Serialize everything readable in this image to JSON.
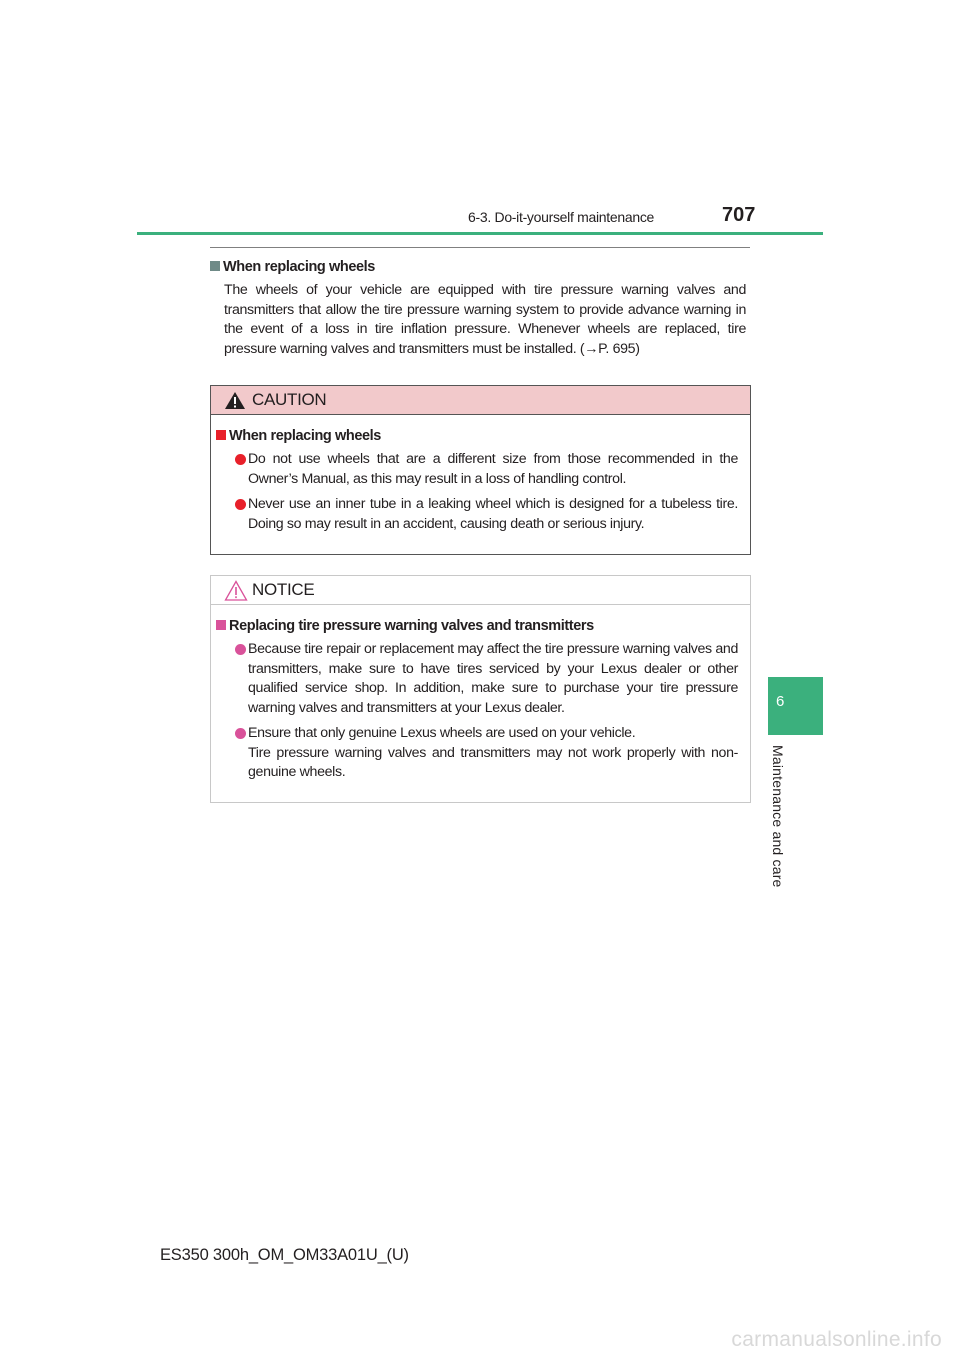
{
  "header": {
    "section": "6-3. Do-it-yourself maintenance",
    "page_number": "707"
  },
  "intro": {
    "heading": "When replacing wheels",
    "body": "The wheels of your vehicle are equipped with tire pressure warning valves and transmitters that allow the tire pressure warning system to provide advance warning in the event of a loss in tire inflation pressure. Whenever wheels are replaced, tire pressure warning valves and transmitters must be installed. (→P. 695)"
  },
  "caution": {
    "title": "CAUTION",
    "heading": "When replacing wheels",
    "bullets": [
      "Do not use wheels that are a different size from those recommended in the Owner’s Manual, as this may result in a loss of handling control.",
      "Never use an inner tube in a leaking wheel which is designed for a tubeless tire. Doing so may result in an accident, causing death or serious injury."
    ]
  },
  "notice": {
    "title": "NOTICE",
    "heading": "Replacing tire pressure warning valves and transmitters",
    "bullets": [
      "Because tire repair or replacement may affect the tire pressure warning valves and transmitters, make sure to have tires serviced by your Lexus dealer or other qualified service shop. In addition, make sure to purchase your tire pressure warning valves and transmitters at your Lexus dealer.",
      [
        "Ensure that only genuine Lexus wheels are used on your vehicle.",
        "Tire pressure warning valves and transmitters may not work properly with non-genuine wheels."
      ]
    ]
  },
  "side_tab": {
    "number": "6",
    "label": "Maintenance and care"
  },
  "footer": {
    "code": "ES350 300h_OM_OM33A01U_(U)"
  },
  "watermark": "carmanualsonline.info",
  "colors": {
    "accent_green": "#3bb07d",
    "caution_header": "#f2c9cb",
    "caution_red": "#e8202a",
    "notice_pink": "#d9529a",
    "intro_square": "#6f8a87"
  }
}
